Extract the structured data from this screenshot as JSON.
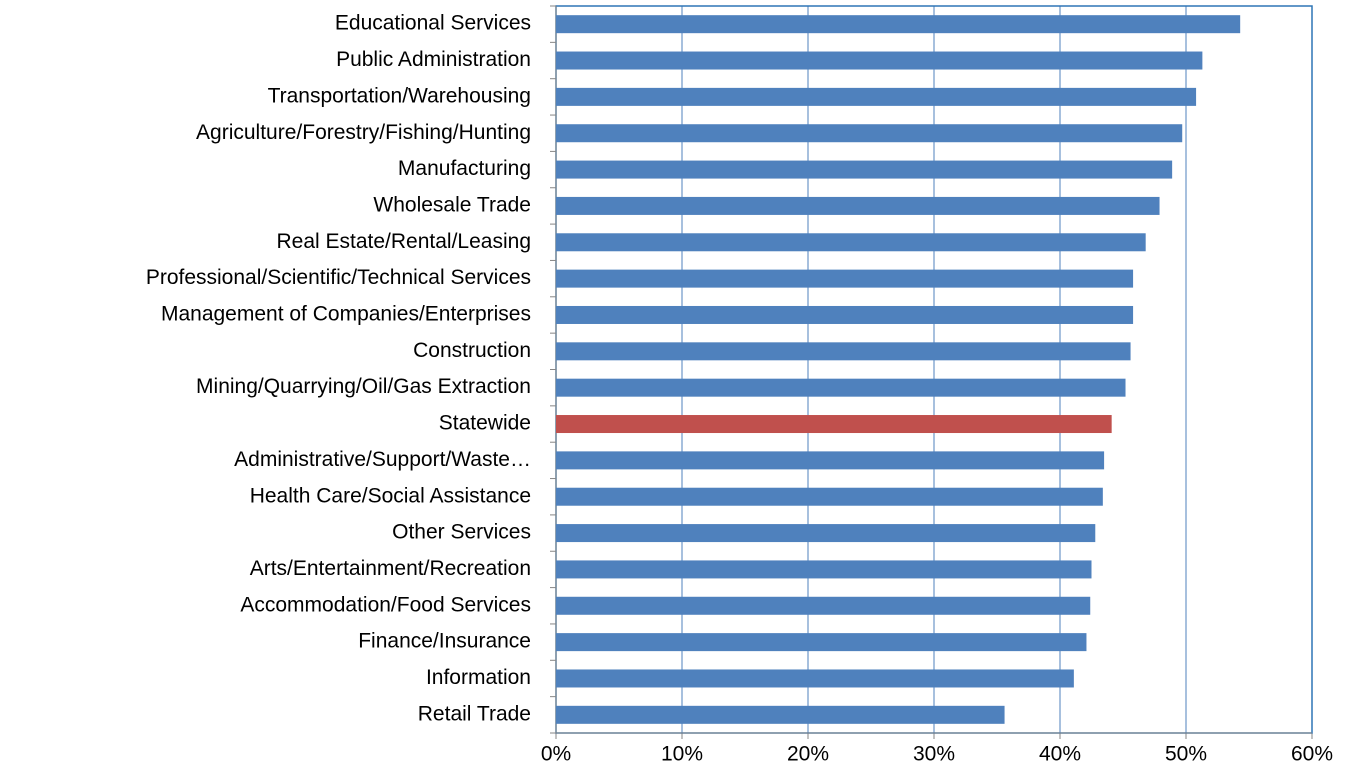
{
  "chart_data": {
    "type": "hbar",
    "categories": [
      "Educational Services",
      "Public Administration",
      "Transportation/Warehousing",
      "Agriculture/Forestry/Fishing/Hunting",
      "Manufacturing",
      "Wholesale Trade",
      "Real Estate/Rental/Leasing",
      "Professional/Scientific/Technical Services",
      "Management of Companies/Enterprises",
      "Construction",
      "Mining/Quarrying/Oil/Gas Extraction",
      "Statewide",
      "Administrative/Support/Waste…",
      "Health Care/Social Assistance",
      "Other Services",
      "Arts/Entertainment/Recreation",
      "Accommodation/Food Services",
      "Finance/Insurance",
      "Information",
      "Retail Trade"
    ],
    "values": [
      54.3,
      51.3,
      50.8,
      49.7,
      48.9,
      47.9,
      46.8,
      45.8,
      45.8,
      45.6,
      45.2,
      44.1,
      43.5,
      43.4,
      42.8,
      42.5,
      42.4,
      42.1,
      41.1,
      35.6
    ],
    "colors": [
      "#4f81bd",
      "#4f81bd",
      "#4f81bd",
      "#4f81bd",
      "#4f81bd",
      "#4f81bd",
      "#4f81bd",
      "#4f81bd",
      "#4f81bd",
      "#4f81bd",
      "#4f81bd",
      "#c0504d",
      "#4f81bd",
      "#4f81bd",
      "#4f81bd",
      "#4f81bd",
      "#4f81bd",
      "#4f81bd",
      "#4f81bd",
      "#4f81bd"
    ],
    "xlim": [
      0,
      60
    ],
    "xticks": [
      {
        "value": 0,
        "label": "0%"
      },
      {
        "value": 10,
        "label": "10%"
      },
      {
        "value": 20,
        "label": "20%"
      },
      {
        "value": 30,
        "label": "30%"
      },
      {
        "value": 40,
        "label": "40%"
      },
      {
        "value": 50,
        "label": "50%"
      },
      {
        "value": 60,
        "label": "60%"
      }
    ],
    "grid": true
  }
}
